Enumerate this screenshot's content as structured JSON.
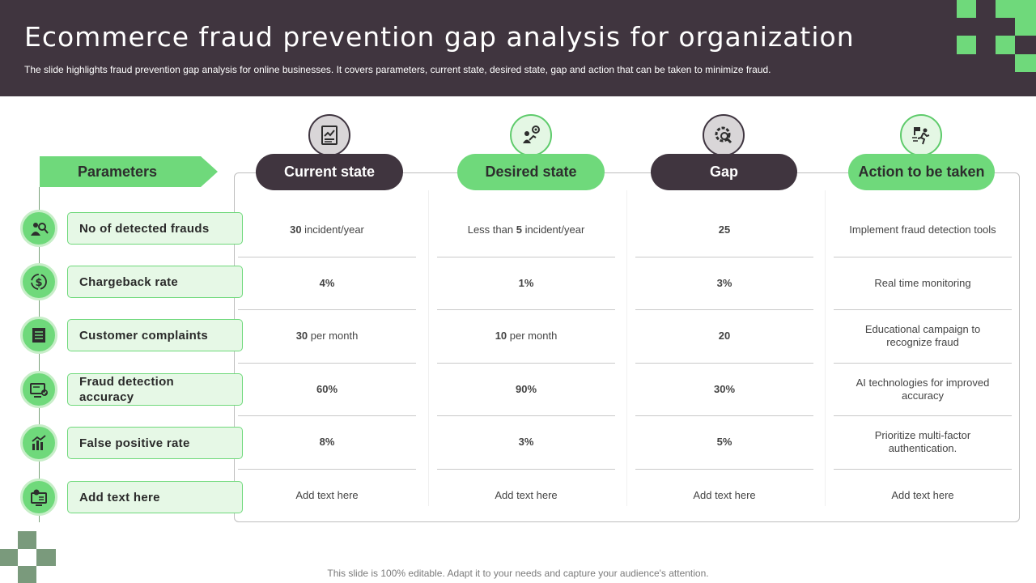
{
  "title": "Ecommerce fraud prevention gap analysis for organization",
  "subtitle": "The slide highlights fraud prevention gap analysis for online businesses. It covers parameters, current state, desired state, gap and action that can be taken to minimize fraud.",
  "footer": "This slide is 100% editable. Adapt it to your needs and capture your audience's attention.",
  "colors": {
    "dark": "#40353f",
    "green": "#6fd97b",
    "light_green": "#e6f8e6"
  },
  "parameters_label": "Parameters",
  "columns": [
    {
      "label": "Current state",
      "icon": "report-chart-icon",
      "style": "dark"
    },
    {
      "label": "Desired state",
      "icon": "target-growth-icon",
      "style": "green"
    },
    {
      "label": "Gap",
      "icon": "magnifier-gear-icon",
      "style": "dark"
    },
    {
      "label": "Action to be taken",
      "icon": "running-flag-icon",
      "style": "green"
    }
  ],
  "rows": [
    {
      "label": "No of detected frauds",
      "icon": "fraud-detective-icon",
      "current": {
        "bold": "30",
        "text": " incident/year"
      },
      "desired": {
        "bold": "",
        "text": "Less than ",
        "bold2": "5",
        "text2": " incident/year"
      },
      "gap": {
        "bold": "25",
        "text": ""
      },
      "action": "Implement fraud detection tools"
    },
    {
      "label": "Chargeback rate",
      "icon": "dollar-refresh-icon",
      "current": {
        "bold": "4%",
        "text": ""
      },
      "desired": {
        "bold": "1%",
        "text": ""
      },
      "gap": {
        "bold": "3%",
        "text": ""
      },
      "action": "Real time monitoring"
    },
    {
      "label": "Customer complaints",
      "icon": "document-list-icon",
      "current": {
        "bold": "30",
        "text": " per month"
      },
      "desired": {
        "bold": "10",
        "text": " per month"
      },
      "gap": {
        "bold": "20",
        "text": ""
      },
      "action": "Educational campaign to recognize fraud"
    },
    {
      "label": "Fraud detection accuracy",
      "icon": "monitor-check-icon",
      "current": {
        "bold": "60%",
        "text": ""
      },
      "desired": {
        "bold": "90%",
        "text": ""
      },
      "gap": {
        "bold": "30%",
        "text": ""
      },
      "action": "AI technologies for improved accuracy"
    },
    {
      "label": "False positive rate",
      "icon": "bar-chart-icon",
      "current": {
        "bold": "8%",
        "text": ""
      },
      "desired": {
        "bold": "3%",
        "text": ""
      },
      "gap": {
        "bold": "5%",
        "text": ""
      },
      "action": "Prioritize multi-factor authentication."
    },
    {
      "label": "Add text here",
      "icon": "screen-gear-icon",
      "current": {
        "bold": "",
        "text": "Add text here"
      },
      "desired": {
        "bold": "",
        "text": "Add text here"
      },
      "gap": {
        "bold": "",
        "text": "Add text here"
      },
      "action": "Add text here"
    }
  ]
}
